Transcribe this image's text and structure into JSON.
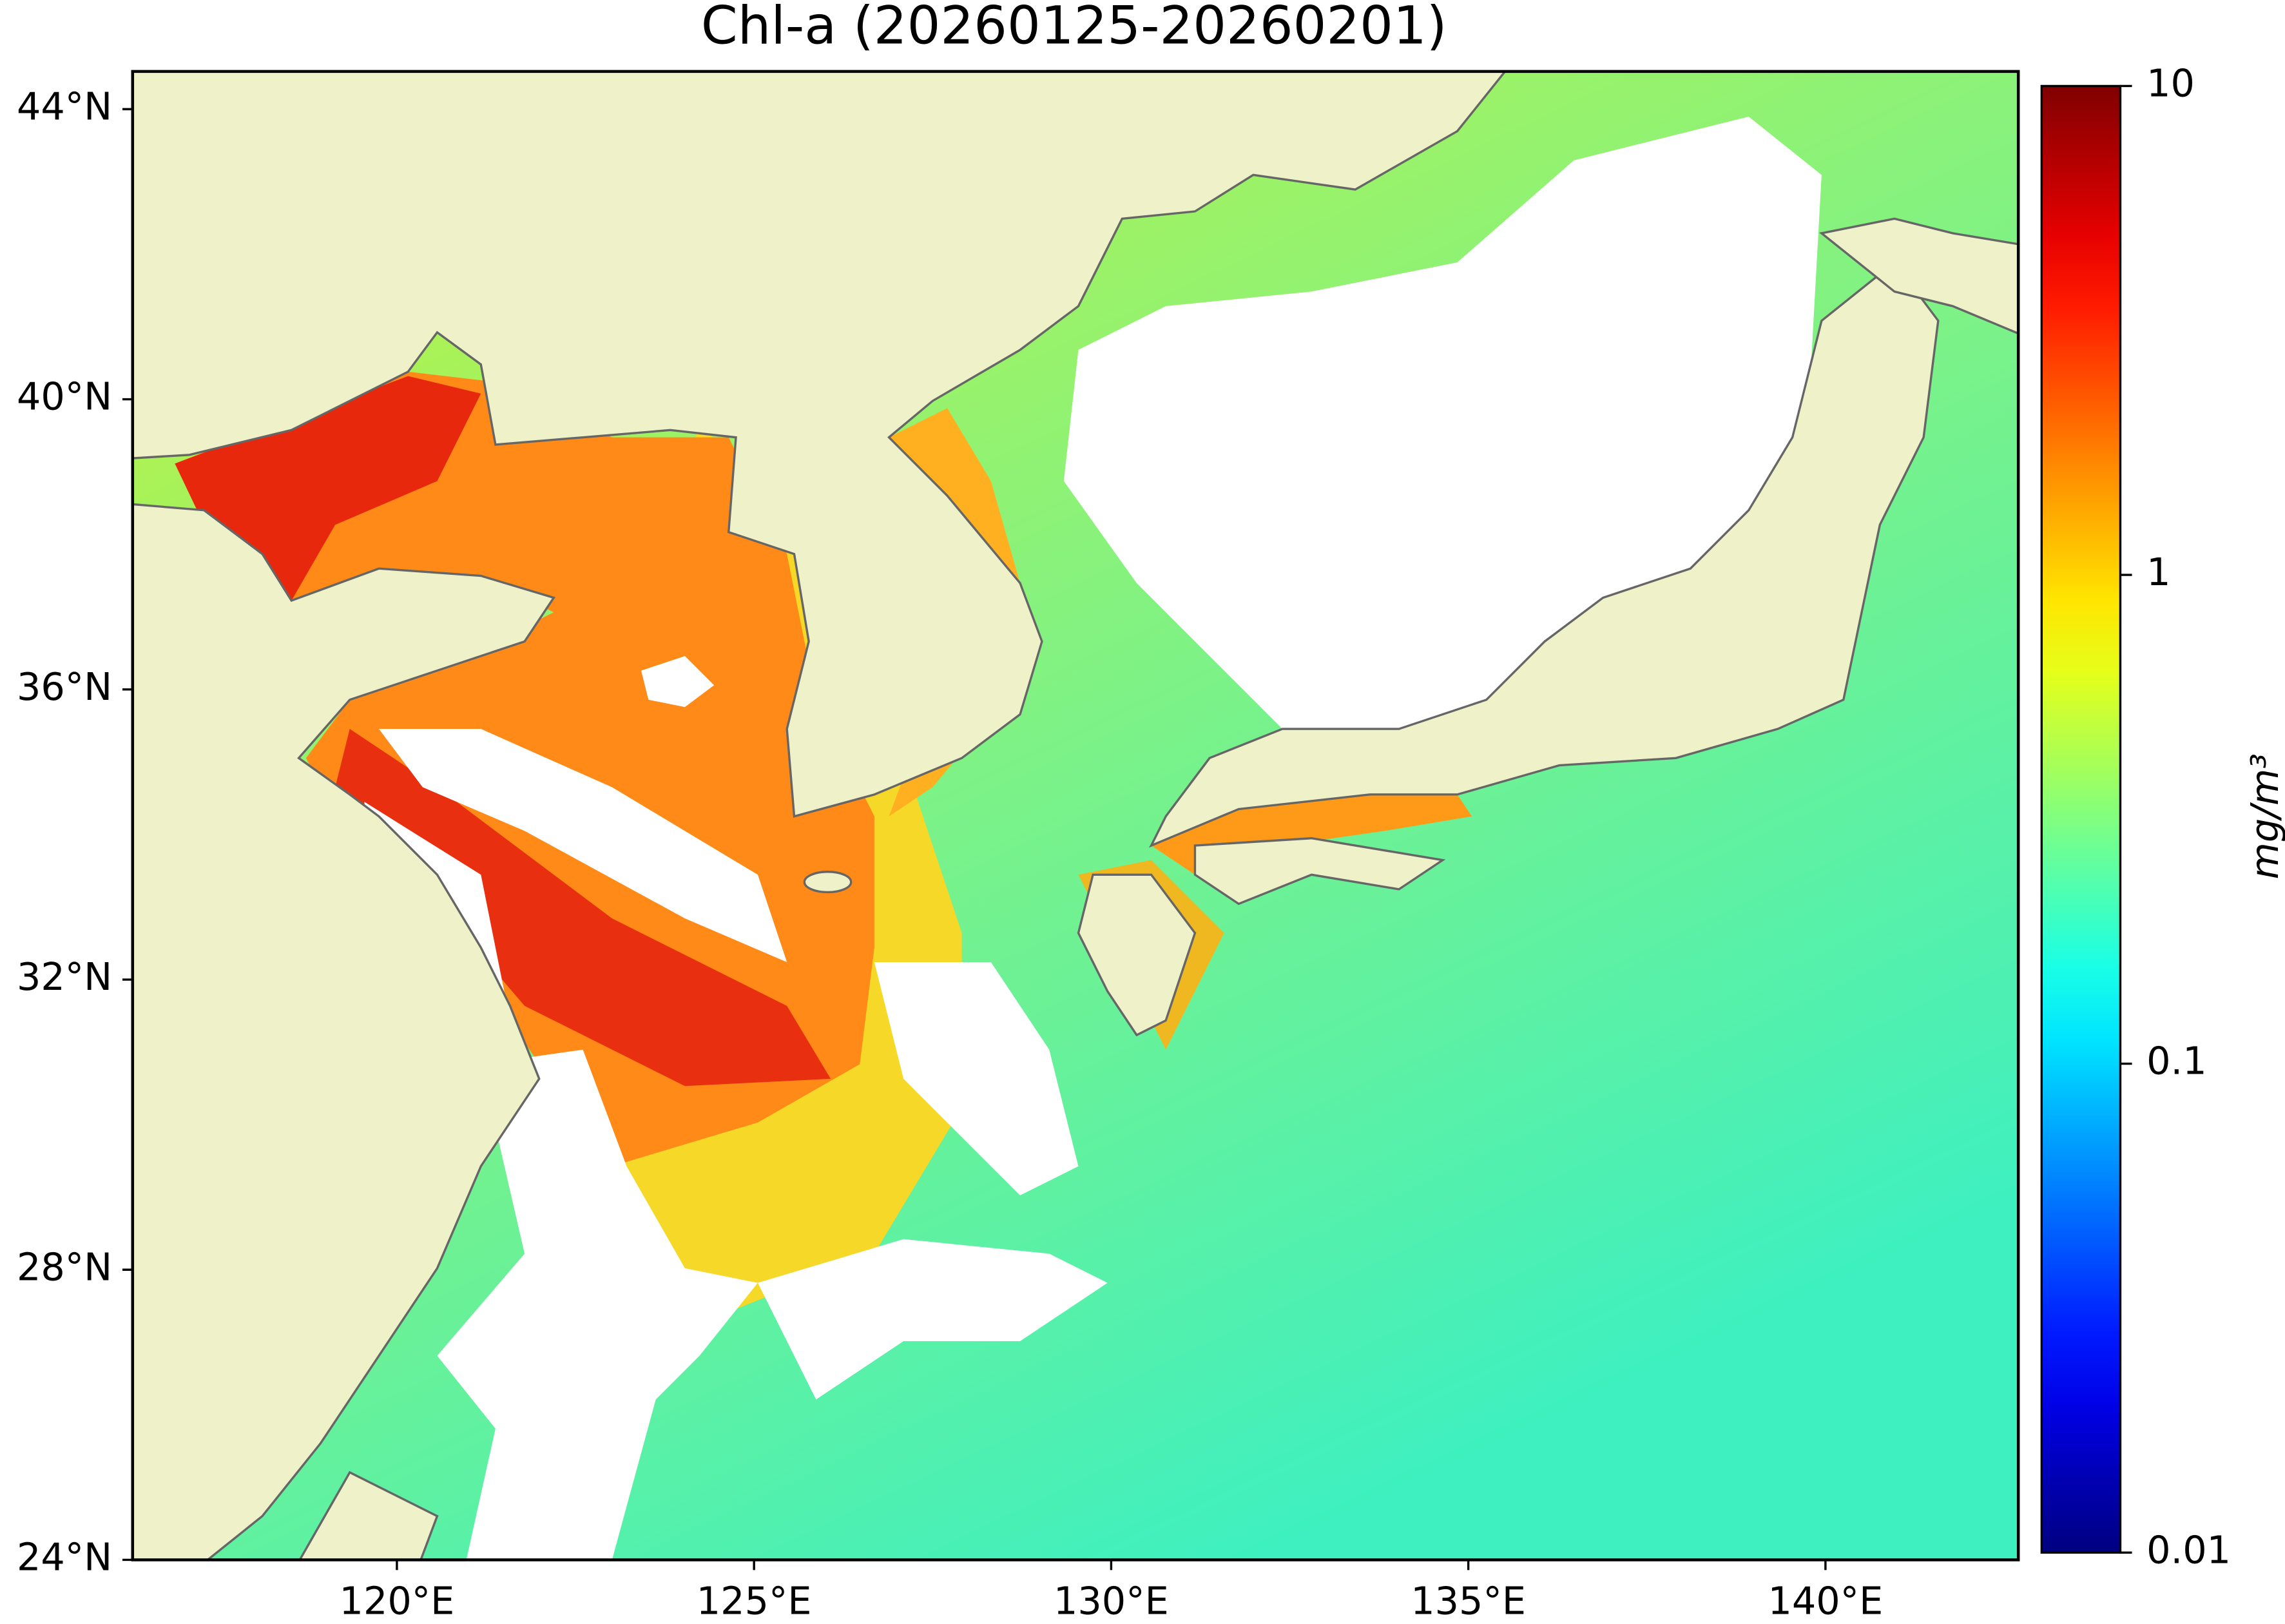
{
  "title": "Chl-a (20260125-20260201)",
  "map": {
    "type": "map",
    "xlim": [
      116.3,
      142.7
    ],
    "ylim": [
      24,
      44.52
    ],
    "xticks": [
      {
        "value": 120,
        "label": "120°E"
      },
      {
        "value": 125,
        "label": "125°E"
      },
      {
        "value": 130,
        "label": "130°E"
      },
      {
        "value": 135,
        "label": "135°E"
      },
      {
        "value": 140,
        "label": "140°E"
      }
    ],
    "yticks": [
      {
        "value": 24,
        "label": "24°N"
      },
      {
        "value": 28,
        "label": "28°N"
      },
      {
        "value": 32,
        "label": "32°N"
      },
      {
        "value": 36,
        "label": "36°N"
      },
      {
        "value": 40,
        "label": "40°N"
      },
      {
        "value": 44,
        "label": "44°N"
      }
    ]
  },
  "colorbar": {
    "scale": "log",
    "colormap": "jet",
    "lim": [
      0.01,
      10
    ],
    "ticks": [
      0.01,
      0.1,
      1,
      10
    ],
    "label": "mg/m³"
  }
}
